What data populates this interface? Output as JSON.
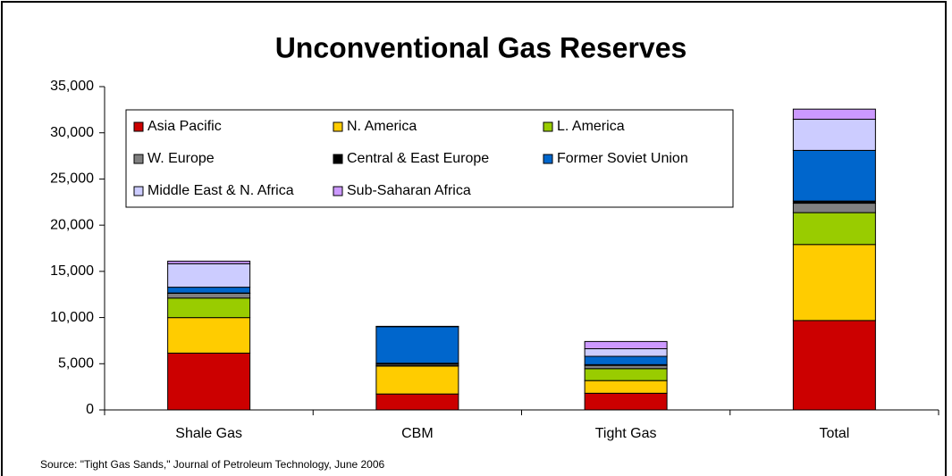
{
  "chart_data": {
    "type": "stacked_bar",
    "title": "Unconventional Gas Reserves",
    "categories": [
      "Shale Gas",
      "CBM",
      "Tight Gas",
      "Total"
    ],
    "series": [
      {
        "name": "Asia Pacific",
        "color": "#cc0000",
        "values": [
          6151,
          1724,
          1804,
          9679
        ]
      },
      {
        "name": "N. America",
        "color": "#ffcc00",
        "values": [
          3842,
          3017,
          1371,
          8230
        ]
      },
      {
        "name": "L. America",
        "color": "#99cc00",
        "values": [
          2117,
          39,
          1293,
          3449
        ]
      },
      {
        "name": "W. Europe",
        "color": "#808080",
        "values": [
          509,
          157,
          353,
          1019
        ]
      },
      {
        "name": "Central & East Europe",
        "color": "#000000",
        "values": [
          39,
          118,
          78,
          235
        ]
      },
      {
        "name": "Former Soviet Union",
        "color": "#0066cc",
        "values": [
          627,
          3957,
          901,
          5485
        ]
      },
      {
        "name": "Middle East & N. Africa",
        "color": "#ccccff",
        "values": [
          2548,
          0,
          823,
          3371
        ]
      },
      {
        "name": "Sub-Saharan Africa",
        "color": "#cc99ff",
        "values": [
          274,
          39,
          784,
          1097
        ]
      }
    ],
    "ylim": [
      0,
      35000
    ],
    "yticks": [
      0,
      {
        "value": 5000,
        "label": "5,000"
      },
      {
        "value": 10000,
        "label": "10,000"
      },
      {
        "value": 15000,
        "label": "15,000"
      },
      {
        "value": 20000,
        "label": "20,000"
      },
      {
        "value": 25000,
        "label": "25,000"
      },
      {
        "value": 30000,
        "label": "30,000"
      },
      {
        "value": 35000,
        "label": "35,000"
      }
    ],
    "legend": "top-left",
    "source": "Source: \"Tight Gas Sands,\" Journal of Petroleum Technology, June 2006"
  }
}
